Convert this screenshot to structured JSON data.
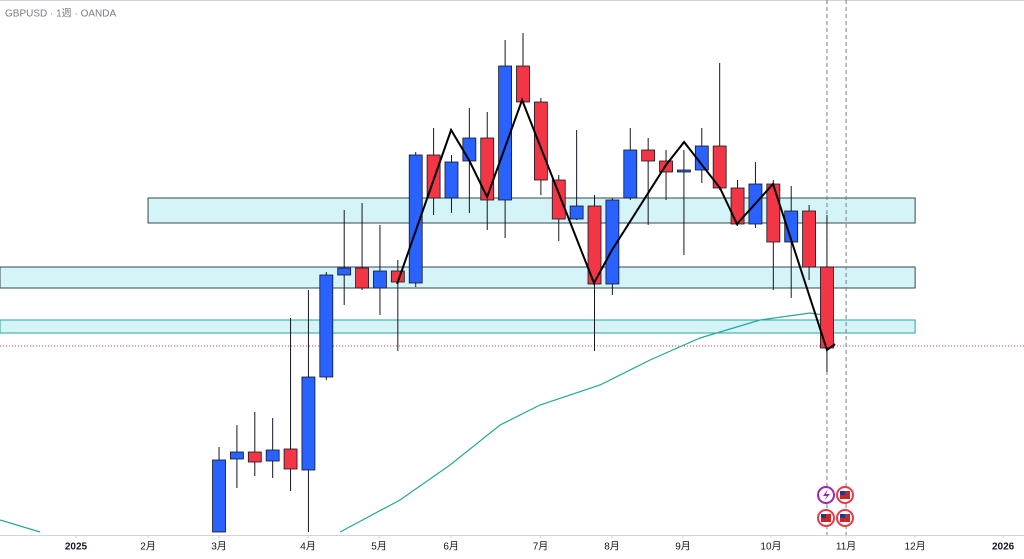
{
  "chart_data": {
    "type": "candlestick",
    "title": "GBPUSD · 1週 · OANDA",
    "xlim": [
      -12.25,
      45.02
    ],
    "ylim": [
      1.25625,
      1.39
    ],
    "xticks": [
      {
        "value": -8.0,
        "label": "2025"
      },
      {
        "value": -3.97,
        "label": "2月"
      },
      {
        "value": 0,
        "label": "3月"
      },
      {
        "value": 4.98,
        "label": "4月"
      },
      {
        "value": 8.95,
        "label": "5月"
      },
      {
        "value": 12.98,
        "label": "6月"
      },
      {
        "value": 17.98,
        "label": "7月"
      },
      {
        "value": 21.98,
        "label": "8月"
      },
      {
        "value": 25.95,
        "label": "9月"
      },
      {
        "value": 30.87,
        "label": "10月"
      },
      {
        "value": 35.07,
        "label": "11月"
      },
      {
        "value": 38.93,
        "label": "12月"
      },
      {
        "value": 43.85,
        "label": "2026"
      }
    ],
    "up_color": "#2962ff",
    "down_color": "#f23645",
    "x": [
      0,
      1,
      2,
      3,
      4,
      5,
      6,
      7,
      8,
      9,
      10,
      11,
      12,
      13,
      14,
      15,
      16,
      17,
      18,
      19,
      20,
      21,
      22,
      23,
      24,
      25,
      26,
      27,
      28,
      29,
      30,
      31,
      32,
      33,
      34
    ],
    "open": [
      1.257,
      1.27525,
      1.277,
      1.27475,
      1.27775,
      1.2725,
      1.29575,
      1.32125,
      1.323,
      1.318,
      1.32225,
      1.31925,
      1.35125,
      1.3405,
      1.34975,
      1.3555,
      1.34,
      1.3735,
      1.3645,
      1.345,
      1.33525,
      1.3385,
      1.319,
      1.3405,
      1.3525,
      1.34975,
      1.347,
      1.3475,
      1.3535,
      1.343,
      1.334,
      1.344,
      1.3295,
      1.33725,
      1.32325
    ],
    "high": [
      1.27825,
      1.28375,
      1.287,
      1.2855,
      1.3105,
      1.3175,
      1.322,
      1.3375,
      1.33925,
      1.33375,
      1.325,
      1.352,
      1.358,
      1.35125,
      1.363,
      1.362,
      1.38,
      1.38175,
      1.3655,
      1.34625,
      1.3575,
      1.34125,
      1.3405,
      1.358,
      1.3555,
      1.3525,
      1.3525,
      1.358,
      1.37425,
      1.345,
      1.3495,
      1.345,
      1.3435,
      1.33875,
      1.33625
    ],
    "low": [
      1.257,
      1.268,
      1.271,
      1.2705,
      1.26725,
      1.257,
      1.295,
      1.31375,
      1.3175,
      1.31125,
      1.30225,
      1.31825,
      1.33625,
      1.33675,
      1.33675,
      1.3325,
      1.3305,
      1.36425,
      1.34125,
      1.32975,
      1.335,
      1.30225,
      1.31625,
      1.34,
      1.33375,
      1.34,
      1.32625,
      1.34425,
      1.3425,
      1.3335,
      1.333,
      1.3175,
      1.3155,
      1.32,
      1.297
    ],
    "close": [
      1.275,
      1.277,
      1.2745,
      1.2775,
      1.27275,
      1.29575,
      1.32125,
      1.323,
      1.318,
      1.32225,
      1.3195,
      1.35125,
      1.3405,
      1.3495,
      1.3555,
      1.34,
      1.3735,
      1.3645,
      1.345,
      1.33525,
      1.3385,
      1.319,
      1.34,
      1.3525,
      1.34975,
      1.347,
      1.3475,
      1.3535,
      1.343,
      1.334,
      1.344,
      1.3295,
      1.33725,
      1.32325,
      1.303
    ],
    "zigzag": {
      "color": "#000000",
      "x": [
        9.96,
        12.98,
        13.98,
        14.99,
        16.95,
        20.97,
        21.98,
        25.0,
        26.01,
        28.02,
        28.97,
        30.98,
        34.0,
        34.45
      ],
      "values": [
        1.319,
        1.3575,
        1.35,
        1.34075,
        1.365,
        1.31925,
        1.3275,
        1.34875,
        1.3545,
        1.343,
        1.334,
        1.344,
        1.3025,
        1.304
      ]
    },
    "moving_average": {
      "color": "#26a69a",
      "x": [
        -12.25,
        -10.01,
        null,
        6.77,
        10.12,
        12.92,
        15.72,
        17.95,
        21.31,
        24.11,
        26.9,
        30.26,
        33.05,
        33.89
      ],
      "values": [
        1.26,
        1.257,
        null,
        1.257,
        1.265,
        1.27375,
        1.28375,
        1.28875,
        1.29375,
        1.3,
        1.3055,
        1.31,
        1.31175,
        1.3112
      ]
    },
    "zones": [
      {
        "x": [
          -3.97,
          38.93
        ],
        "y": [
          1.3405,
          1.33425
        ],
        "fill": "#d4f4f7",
        "border": "#37474f"
      },
      {
        "x": [
          -12.25,
          38.93
        ],
        "y": [
          1.32325,
          1.318
        ],
        "fill": "#d4f4f7",
        "border": "#37474f"
      },
      {
        "x": [
          -12.25,
          38.93
        ],
        "y": [
          1.31,
          1.30675
        ],
        "fill": "#d4f4f7",
        "border": "#26a69a"
      }
    ],
    "price_line": {
      "value": 1.3035,
      "color": "#f23645"
    },
    "vertical_lines": [
      34.0,
      35.07
    ]
  }
}
